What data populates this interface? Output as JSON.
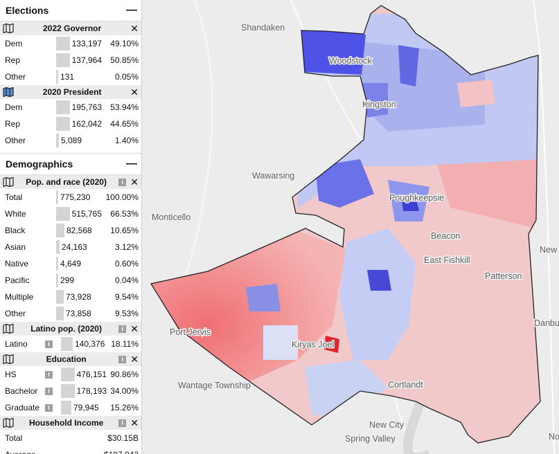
{
  "elections": {
    "title": "Elections",
    "groups": [
      {
        "title": "2022 Governor",
        "rows": [
          {
            "label": "Dem",
            "count": "133,197",
            "pct": "49.10%",
            "frac": 0.491
          },
          {
            "label": "Rep",
            "count": "137,964",
            "pct": "50.85%",
            "frac": 0.5085
          },
          {
            "label": "Other",
            "count": "131",
            "pct": "0.05%",
            "frac": 0.0005
          }
        ]
      },
      {
        "title": "2020 President",
        "rows": [
          {
            "label": "Dem",
            "count": "195,763",
            "pct": "53.94%",
            "frac": 0.5394
          },
          {
            "label": "Rep",
            "count": "162,042",
            "pct": "44.65%",
            "frac": 0.4465
          },
          {
            "label": "Other",
            "count": "5,089",
            "pct": "1.40%",
            "frac": 0.014
          }
        ]
      }
    ]
  },
  "demographics": {
    "title": "Demographics",
    "race": {
      "title": "Pop. and race (2020)",
      "rows": [
        {
          "label": "Total",
          "count": "775,230",
          "pct": "100.00%",
          "frac": 0
        },
        {
          "label": "White",
          "count": "515,765",
          "pct": "66.53%",
          "frac": 0.6653
        },
        {
          "label": "Black",
          "count": "82,568",
          "pct": "10.65%",
          "frac": 0.1065
        },
        {
          "label": "Asian",
          "count": "24,163",
          "pct": "3.12%",
          "frac": 0.0312
        },
        {
          "label": "Native",
          "count": "4,649",
          "pct": "0.60%",
          "frac": 0.006
        },
        {
          "label": "Pacific",
          "count": "299",
          "pct": "0.04%",
          "frac": 0.0004
        },
        {
          "label": "Multiple",
          "count": "73,928",
          "pct": "9.54%",
          "frac": 0.0954
        },
        {
          "label": "Other",
          "count": "73,858",
          "pct": "9.53%",
          "frac": 0.0953
        }
      ]
    },
    "latino": {
      "title": "Latino pop. (2020)",
      "rows": [
        {
          "label": "Latino",
          "count": "140,376",
          "pct": "18.11%",
          "frac": 0.1811,
          "info": true
        }
      ]
    },
    "education": {
      "title": "Education",
      "rows": [
        {
          "label": "HS",
          "count": "476,151",
          "pct": "90.86%",
          "frac": 0.9086,
          "info": true
        },
        {
          "label": "Bachelor",
          "count": "178,193",
          "pct": "34.00%",
          "frac": 0.34,
          "info": true
        },
        {
          "label": "Graduate",
          "count": "79,945",
          "pct": "15.26%",
          "frac": 0.1526,
          "info": true
        }
      ]
    },
    "income": {
      "title": "Household Income",
      "rows": [
        {
          "label": "Total",
          "value": "$30.15B"
        },
        {
          "label": "Average",
          "value": "$107,042"
        }
      ]
    }
  },
  "info_glyph": "i",
  "map_labels": [
    "Shandaken",
    "Woodstock",
    "Kingston",
    "Wawarsing",
    "Poughkeepsie",
    "Monticello",
    "Beacon",
    "East Fishkill",
    "Patterson",
    "Port Jervis",
    "Kiryas Joel",
    "Wantage Township",
    "Cortlandt",
    "New City",
    "Spring Valley",
    "New",
    "Danbu",
    "No"
  ],
  "colors": {
    "dem": "#4a57e0",
    "rep": "#e0474c",
    "border": "#222222",
    "panel_bar": "#d4d4d4"
  }
}
